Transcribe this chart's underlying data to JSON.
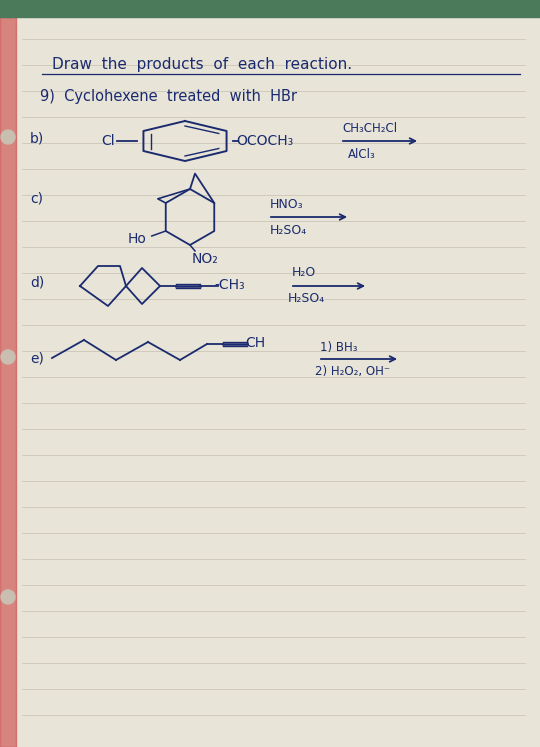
{
  "bg_color": "#e8e4d8",
  "paper_color": "#f2ede0",
  "line_color": "#b0a898",
  "ink_color": "#1a2a6e",
  "top_bar_color": "#4a7a5a",
  "hole_color": "#c8bfb0",
  "margin_color": "#cc4444",
  "title": "Draw  the  products  of  each  reaction.",
  "q9_text": "9)  Cyclohexene  treated  with  HBr",
  "qb_label": "b)",
  "qb_reagent_top": "CH₃CH₂Cl",
  "qb_reagent_bot": "AlCl₃",
  "qc_label": "c)",
  "qc_reagent_top": "HNO₃",
  "qc_reagent_bot": "H₂SO₄",
  "qd_label": "d)",
  "qd_reagent_top": "H₂O",
  "qd_reagent_bot": "H₂SO₄",
  "qe_label": "e)",
  "qe_reagent_top": "1) BH₃",
  "qe_reagent_bot": "2) H₂O₂, OH⁻"
}
